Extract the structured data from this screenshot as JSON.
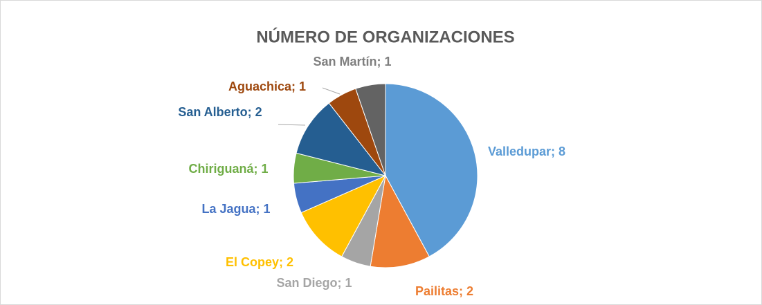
{
  "chart_data": {
    "type": "pie",
    "title": "NÚMERO DE ORGANIZACIONES",
    "values": [
      8,
      2,
      1,
      2,
      1,
      1,
      2,
      1,
      1
    ],
    "value_labels": [
      "Valledupar; 8",
      "Pailitas; 2",
      "San Diego; 1",
      "El Copey; 2",
      "La Jagua; 1",
      "Chiriguaná; 1",
      "San Alberto; 2",
      "Aguachica; 1",
      "San Martín; 1"
    ],
    "colors": [
      "#5b9bd5",
      "#ed7d31",
      "#a5a5a5",
      "#ffc000",
      "#4472c4",
      "#70ad47",
      "#255e91",
      "#9e480e",
      "#636363"
    ]
  }
}
